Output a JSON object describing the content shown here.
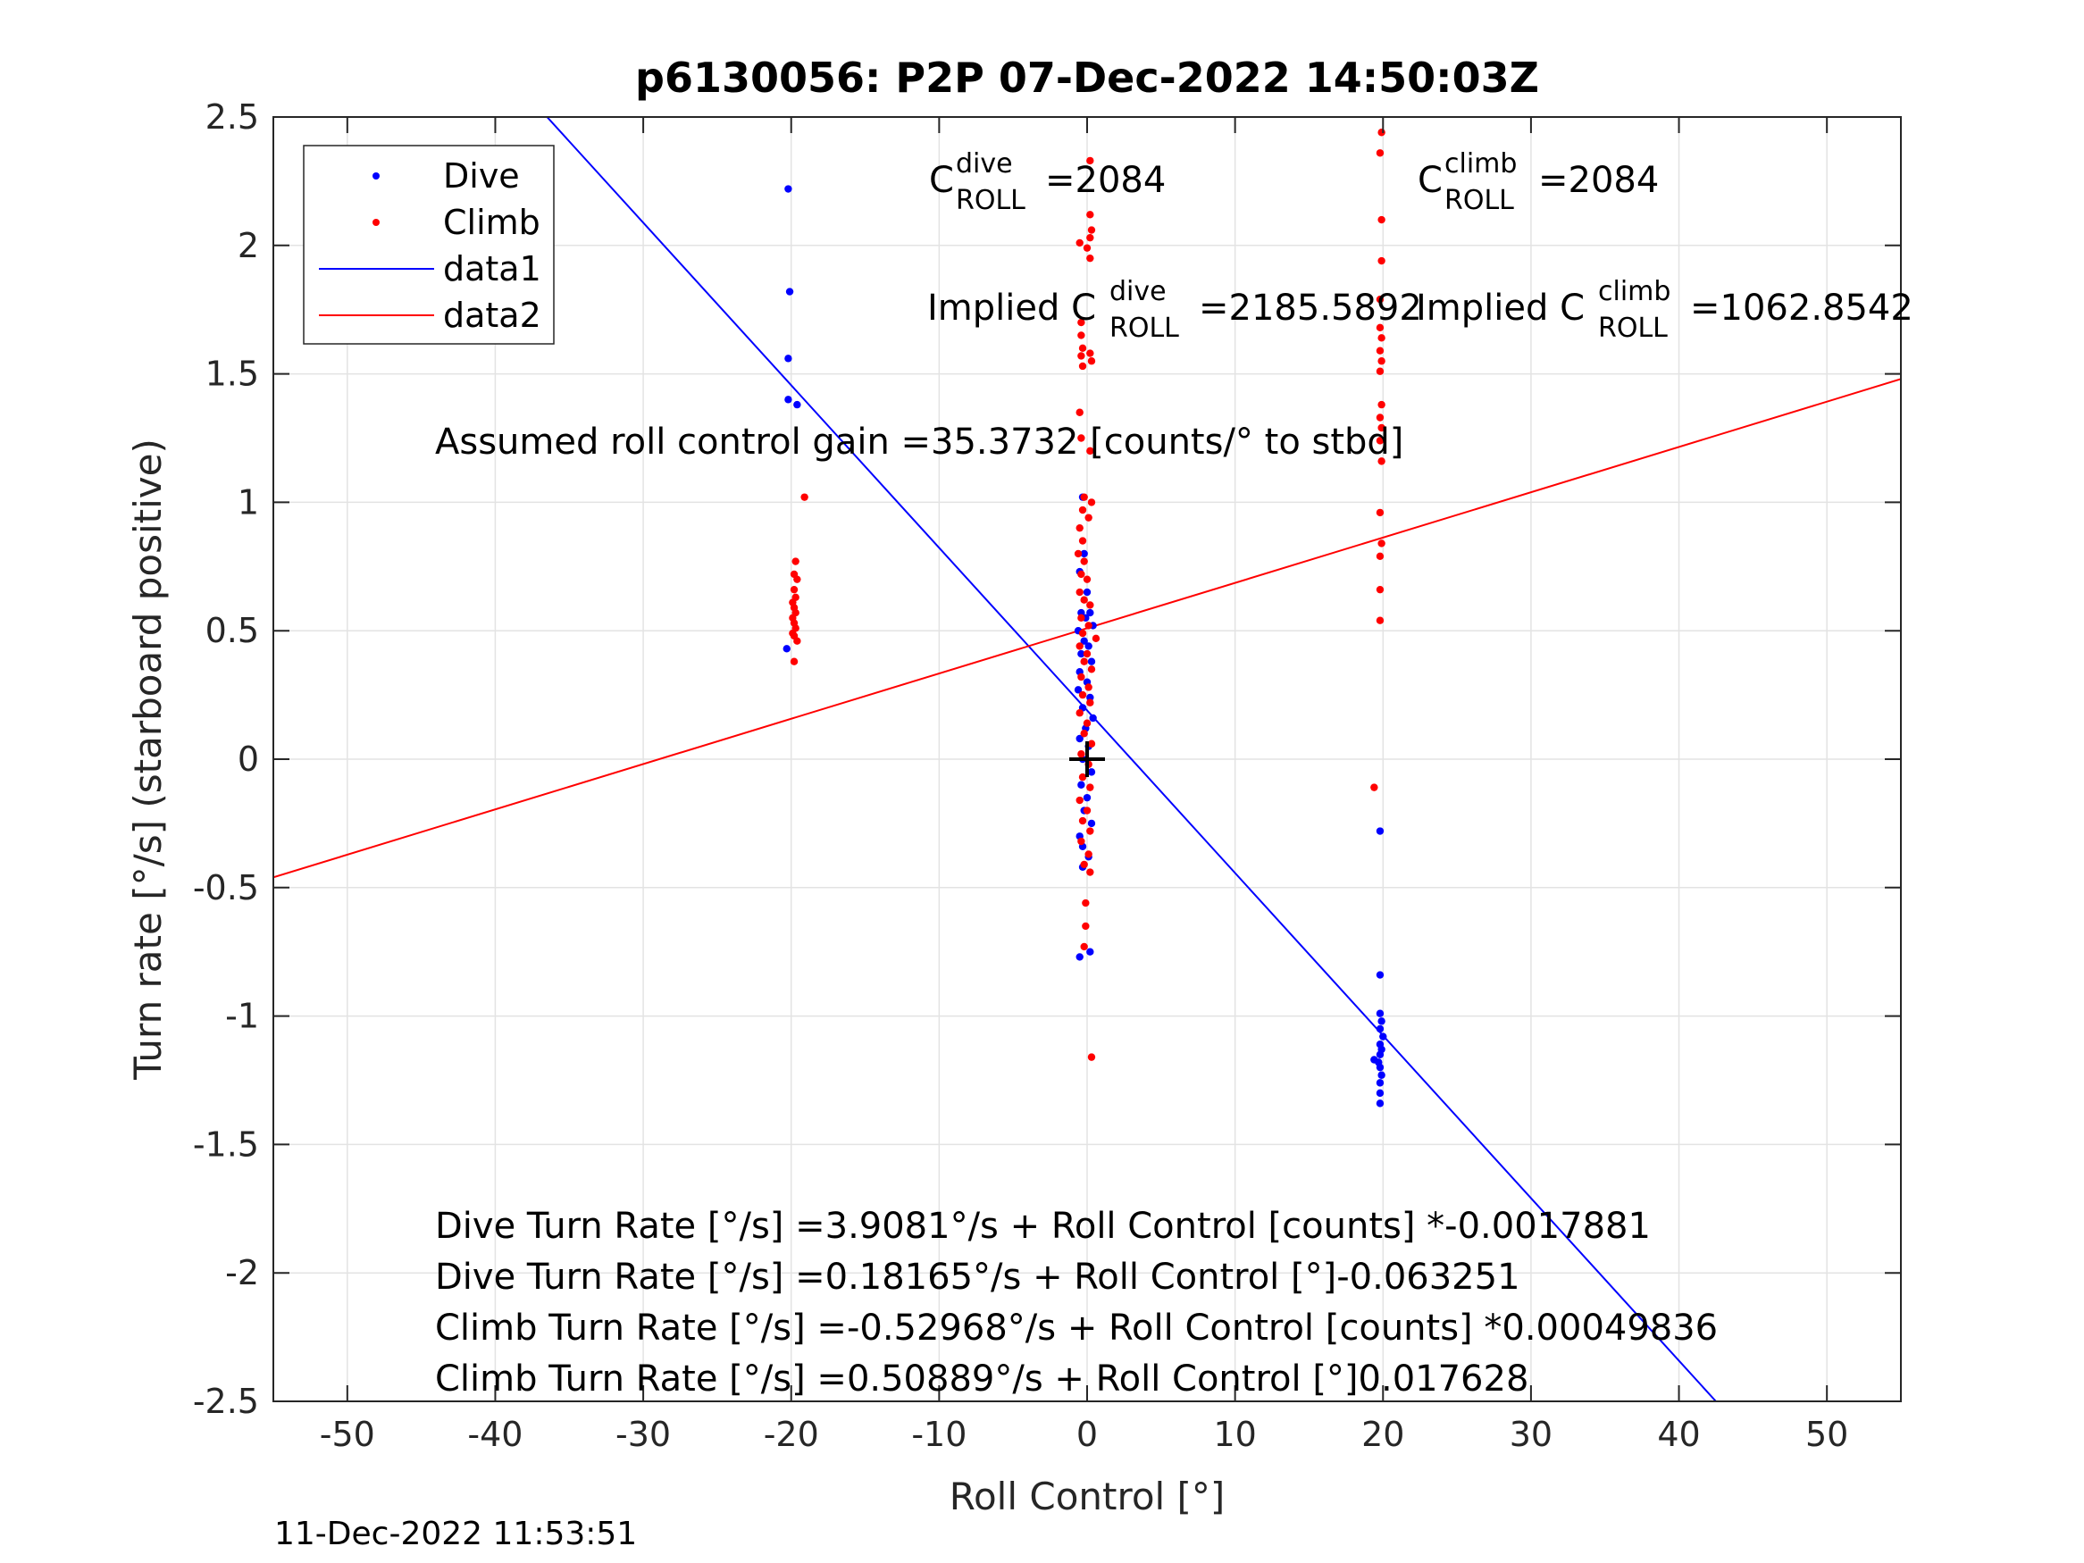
{
  "chart_data": {
    "type": "scatter",
    "title": "p6130056: P2P 07-Dec-2022 14:50:03Z",
    "xlabel": "Roll Control [°]",
    "ylabel": "Turn rate [°/s] (starboard positive)",
    "xlim": [
      -55,
      55
    ],
    "ylim": [
      -2.5,
      2.5
    ],
    "xticks": [
      -50,
      -40,
      -30,
      -20,
      -10,
      0,
      10,
      20,
      30,
      40,
      50
    ],
    "yticks": [
      2.5,
      2,
      1.5,
      1,
      0.5,
      0,
      -0.5,
      -1,
      -1.5,
      -2,
      -2.5
    ],
    "xtick_labels": [
      "-50",
      "-40",
      "-30",
      "-20",
      "-10",
      "0",
      "10",
      "20",
      "30",
      "40",
      "50"
    ],
    "ytick_labels": [
      "2.5",
      "2",
      "1.5",
      "1",
      "0.5",
      "0",
      "-0.5",
      "-1",
      "-1.5",
      "-2",
      "-2.5"
    ],
    "grid": true,
    "legend_position": "top-left",
    "legend": [
      "Dive",
      "Climb",
      "data1",
      "data2"
    ],
    "series": [
      {
        "name": "Dive",
        "kind": "points",
        "color": "#0000ff",
        "points": [
          [
            -20.2,
            2.22
          ],
          [
            -20.1,
            1.82
          ],
          [
            -20.2,
            1.56
          ],
          [
            -20.2,
            1.4
          ],
          [
            -19.6,
            1.38
          ],
          [
            -20.3,
            0.43
          ],
          [
            -0.3,
            1.02
          ],
          [
            -0.2,
            0.8
          ],
          [
            -0.5,
            0.73
          ],
          [
            0.0,
            0.65
          ],
          [
            -0.4,
            0.57
          ],
          [
            0.2,
            0.57
          ],
          [
            -0.1,
            0.55
          ],
          [
            0.4,
            0.52
          ],
          [
            -0.6,
            0.5
          ],
          [
            -0.2,
            0.46
          ],
          [
            0.1,
            0.44
          ],
          [
            -0.4,
            0.41
          ],
          [
            0.3,
            0.38
          ],
          [
            -0.5,
            0.34
          ],
          [
            0.0,
            0.3
          ],
          [
            -0.6,
            0.27
          ],
          [
            0.2,
            0.24
          ],
          [
            -0.3,
            0.2
          ],
          [
            0.4,
            0.16
          ],
          [
            -0.1,
            0.12
          ],
          [
            -0.5,
            0.08
          ],
          [
            0.1,
            0.05
          ],
          [
            -0.3,
            0.0
          ],
          [
            0.3,
            -0.05
          ],
          [
            -0.4,
            -0.1
          ],
          [
            0.0,
            -0.15
          ],
          [
            -0.2,
            -0.2
          ],
          [
            0.3,
            -0.25
          ],
          [
            -0.5,
            -0.3
          ],
          [
            -0.3,
            -0.34
          ],
          [
            0.1,
            -0.38
          ],
          [
            -0.3,
            -0.42
          ],
          [
            -0.5,
            -0.77
          ],
          [
            0.2,
            -0.75
          ],
          [
            19.8,
            -0.28
          ],
          [
            19.8,
            -0.84
          ],
          [
            19.8,
            -0.99
          ],
          [
            19.9,
            -1.02
          ],
          [
            19.8,
            -1.05
          ],
          [
            20.0,
            -1.08
          ],
          [
            19.8,
            -1.11
          ],
          [
            19.9,
            -1.13
          ],
          [
            19.8,
            -1.15
          ],
          [
            19.4,
            -1.17
          ],
          [
            19.7,
            -1.18
          ],
          [
            19.8,
            -1.2
          ],
          [
            19.9,
            -1.23
          ],
          [
            19.8,
            -1.26
          ],
          [
            19.8,
            -1.3
          ],
          [
            19.8,
            -1.34
          ]
        ]
      },
      {
        "name": "Climb",
        "kind": "points",
        "color": "#ff0000",
        "points": [
          [
            -19.1,
            1.02
          ],
          [
            -19.7,
            0.77
          ],
          [
            -19.8,
            0.72
          ],
          [
            -19.6,
            0.7
          ],
          [
            -19.8,
            0.66
          ],
          [
            -19.7,
            0.63
          ],
          [
            -19.9,
            0.61
          ],
          [
            -19.8,
            0.59
          ],
          [
            -19.7,
            0.57
          ],
          [
            -19.9,
            0.55
          ],
          [
            -19.8,
            0.53
          ],
          [
            -19.7,
            0.51
          ],
          [
            -19.9,
            0.49
          ],
          [
            -19.8,
            0.48
          ],
          [
            -19.6,
            0.46
          ],
          [
            -19.8,
            0.38
          ],
          [
            0.2,
            2.33
          ],
          [
            0.2,
            2.12
          ],
          [
            0.3,
            2.06
          ],
          [
            0.2,
            2.03
          ],
          [
            -0.5,
            2.01
          ],
          [
            0.0,
            1.99
          ],
          [
            0.2,
            1.95
          ],
          [
            -0.4,
            1.7
          ],
          [
            -0.4,
            1.65
          ],
          [
            -0.3,
            1.6
          ],
          [
            0.2,
            1.58
          ],
          [
            -0.4,
            1.57
          ],
          [
            -0.3,
            1.53
          ],
          [
            0.3,
            1.55
          ],
          [
            -0.5,
            1.35
          ],
          [
            -0.4,
            1.25
          ],
          [
            0.2,
            1.2
          ],
          [
            -0.2,
            1.02
          ],
          [
            0.3,
            1.0
          ],
          [
            -0.3,
            0.97
          ],
          [
            0.1,
            0.94
          ],
          [
            -0.5,
            0.9
          ],
          [
            -0.3,
            0.85
          ],
          [
            -0.6,
            0.8
          ],
          [
            -0.2,
            0.77
          ],
          [
            -0.4,
            0.72
          ],
          [
            0.0,
            0.7
          ],
          [
            -0.5,
            0.65
          ],
          [
            -0.2,
            0.62
          ],
          [
            0.2,
            0.6
          ],
          [
            -0.4,
            0.55
          ],
          [
            0.1,
            0.52
          ],
          [
            -0.3,
            0.49
          ],
          [
            0.6,
            0.47
          ],
          [
            -0.5,
            0.44
          ],
          [
            0.0,
            0.41
          ],
          [
            -0.2,
            0.38
          ],
          [
            0.3,
            0.35
          ],
          [
            -0.4,
            0.32
          ],
          [
            0.1,
            0.28
          ],
          [
            -0.3,
            0.25
          ],
          [
            0.2,
            0.22
          ],
          [
            -0.5,
            0.18
          ],
          [
            0.0,
            0.14
          ],
          [
            -0.2,
            0.1
          ],
          [
            0.3,
            0.06
          ],
          [
            -0.4,
            0.02
          ],
          [
            0.1,
            -0.02
          ],
          [
            -0.3,
            -0.07
          ],
          [
            0.2,
            -0.11
          ],
          [
            -0.5,
            -0.16
          ],
          [
            0.0,
            -0.2
          ],
          [
            -0.3,
            -0.24
          ],
          [
            0.2,
            -0.28
          ],
          [
            -0.4,
            -0.32
          ],
          [
            0.1,
            -0.37
          ],
          [
            -0.2,
            -0.41
          ],
          [
            0.2,
            -0.44
          ],
          [
            -0.1,
            -0.56
          ],
          [
            -0.1,
            -0.65
          ],
          [
            -0.2,
            -0.73
          ],
          [
            0.3,
            -1.16
          ],
          [
            19.9,
            2.44
          ],
          [
            19.8,
            2.36
          ],
          [
            19.9,
            2.1
          ],
          [
            19.9,
            1.94
          ],
          [
            19.8,
            1.79
          ],
          [
            19.8,
            1.68
          ],
          [
            19.9,
            1.64
          ],
          [
            19.8,
            1.59
          ],
          [
            19.9,
            1.55
          ],
          [
            19.8,
            1.51
          ],
          [
            19.9,
            1.38
          ],
          [
            19.8,
            1.33
          ],
          [
            19.9,
            1.29
          ],
          [
            19.8,
            1.24
          ],
          [
            19.9,
            1.16
          ],
          [
            19.8,
            0.96
          ],
          [
            19.9,
            0.84
          ],
          [
            19.8,
            0.79
          ],
          [
            19.8,
            0.66
          ],
          [
            19.8,
            0.54
          ],
          [
            19.4,
            -0.11
          ]
        ]
      },
      {
        "name": "data1",
        "kind": "line",
        "color": "#0000ff",
        "x": [
          -36.5,
          42.5
        ],
        "y": [
          2.5,
          -2.5
        ]
      },
      {
        "name": "data2",
        "kind": "line",
        "color": "#ff0000",
        "x": [
          -55,
          55
        ],
        "y": [
          -0.46,
          1.48
        ]
      }
    ],
    "marker": {
      "x": 0,
      "y": 0,
      "symbol": "+",
      "color": "#000000"
    },
    "annotations": {
      "c_dive_base": "C",
      "c_dive_sup": "dive",
      "c_dive_sub": "ROLL",
      "c_dive_val": "=2084",
      "c_climb_base": "C",
      "c_climb_sup": "climb",
      "c_climb_sub": "ROLL",
      "c_climb_val": "=2084",
      "implied_dive_pre": "Implied C",
      "implied_dive_sup": "dive",
      "implied_dive_sub": "ROLL",
      "implied_dive_val": "=2185.5892",
      "implied_climb_pre": "Implied C",
      "implied_climb_sup": "climb",
      "implied_climb_sub": "ROLL",
      "implied_climb_val": "=1062.8542",
      "gain": "Assumed roll control gain =35.3732 [counts/° to stbd]",
      "eq1": "Dive Turn Rate [°/s] =3.9081°/s + Roll Control [counts] *-0.0017881",
      "eq2": "Dive Turn Rate [°/s] =0.18165°/s + Roll Control [°]-0.063251",
      "eq3": "Climb Turn Rate [°/s] =-0.52968°/s + Roll Control [counts] *0.00049836",
      "eq4": "Climb Turn Rate [°/s] =0.50889°/s + Roll Control [°]0.017628"
    },
    "timestamp": "11-Dec-2022 11:53:51"
  }
}
